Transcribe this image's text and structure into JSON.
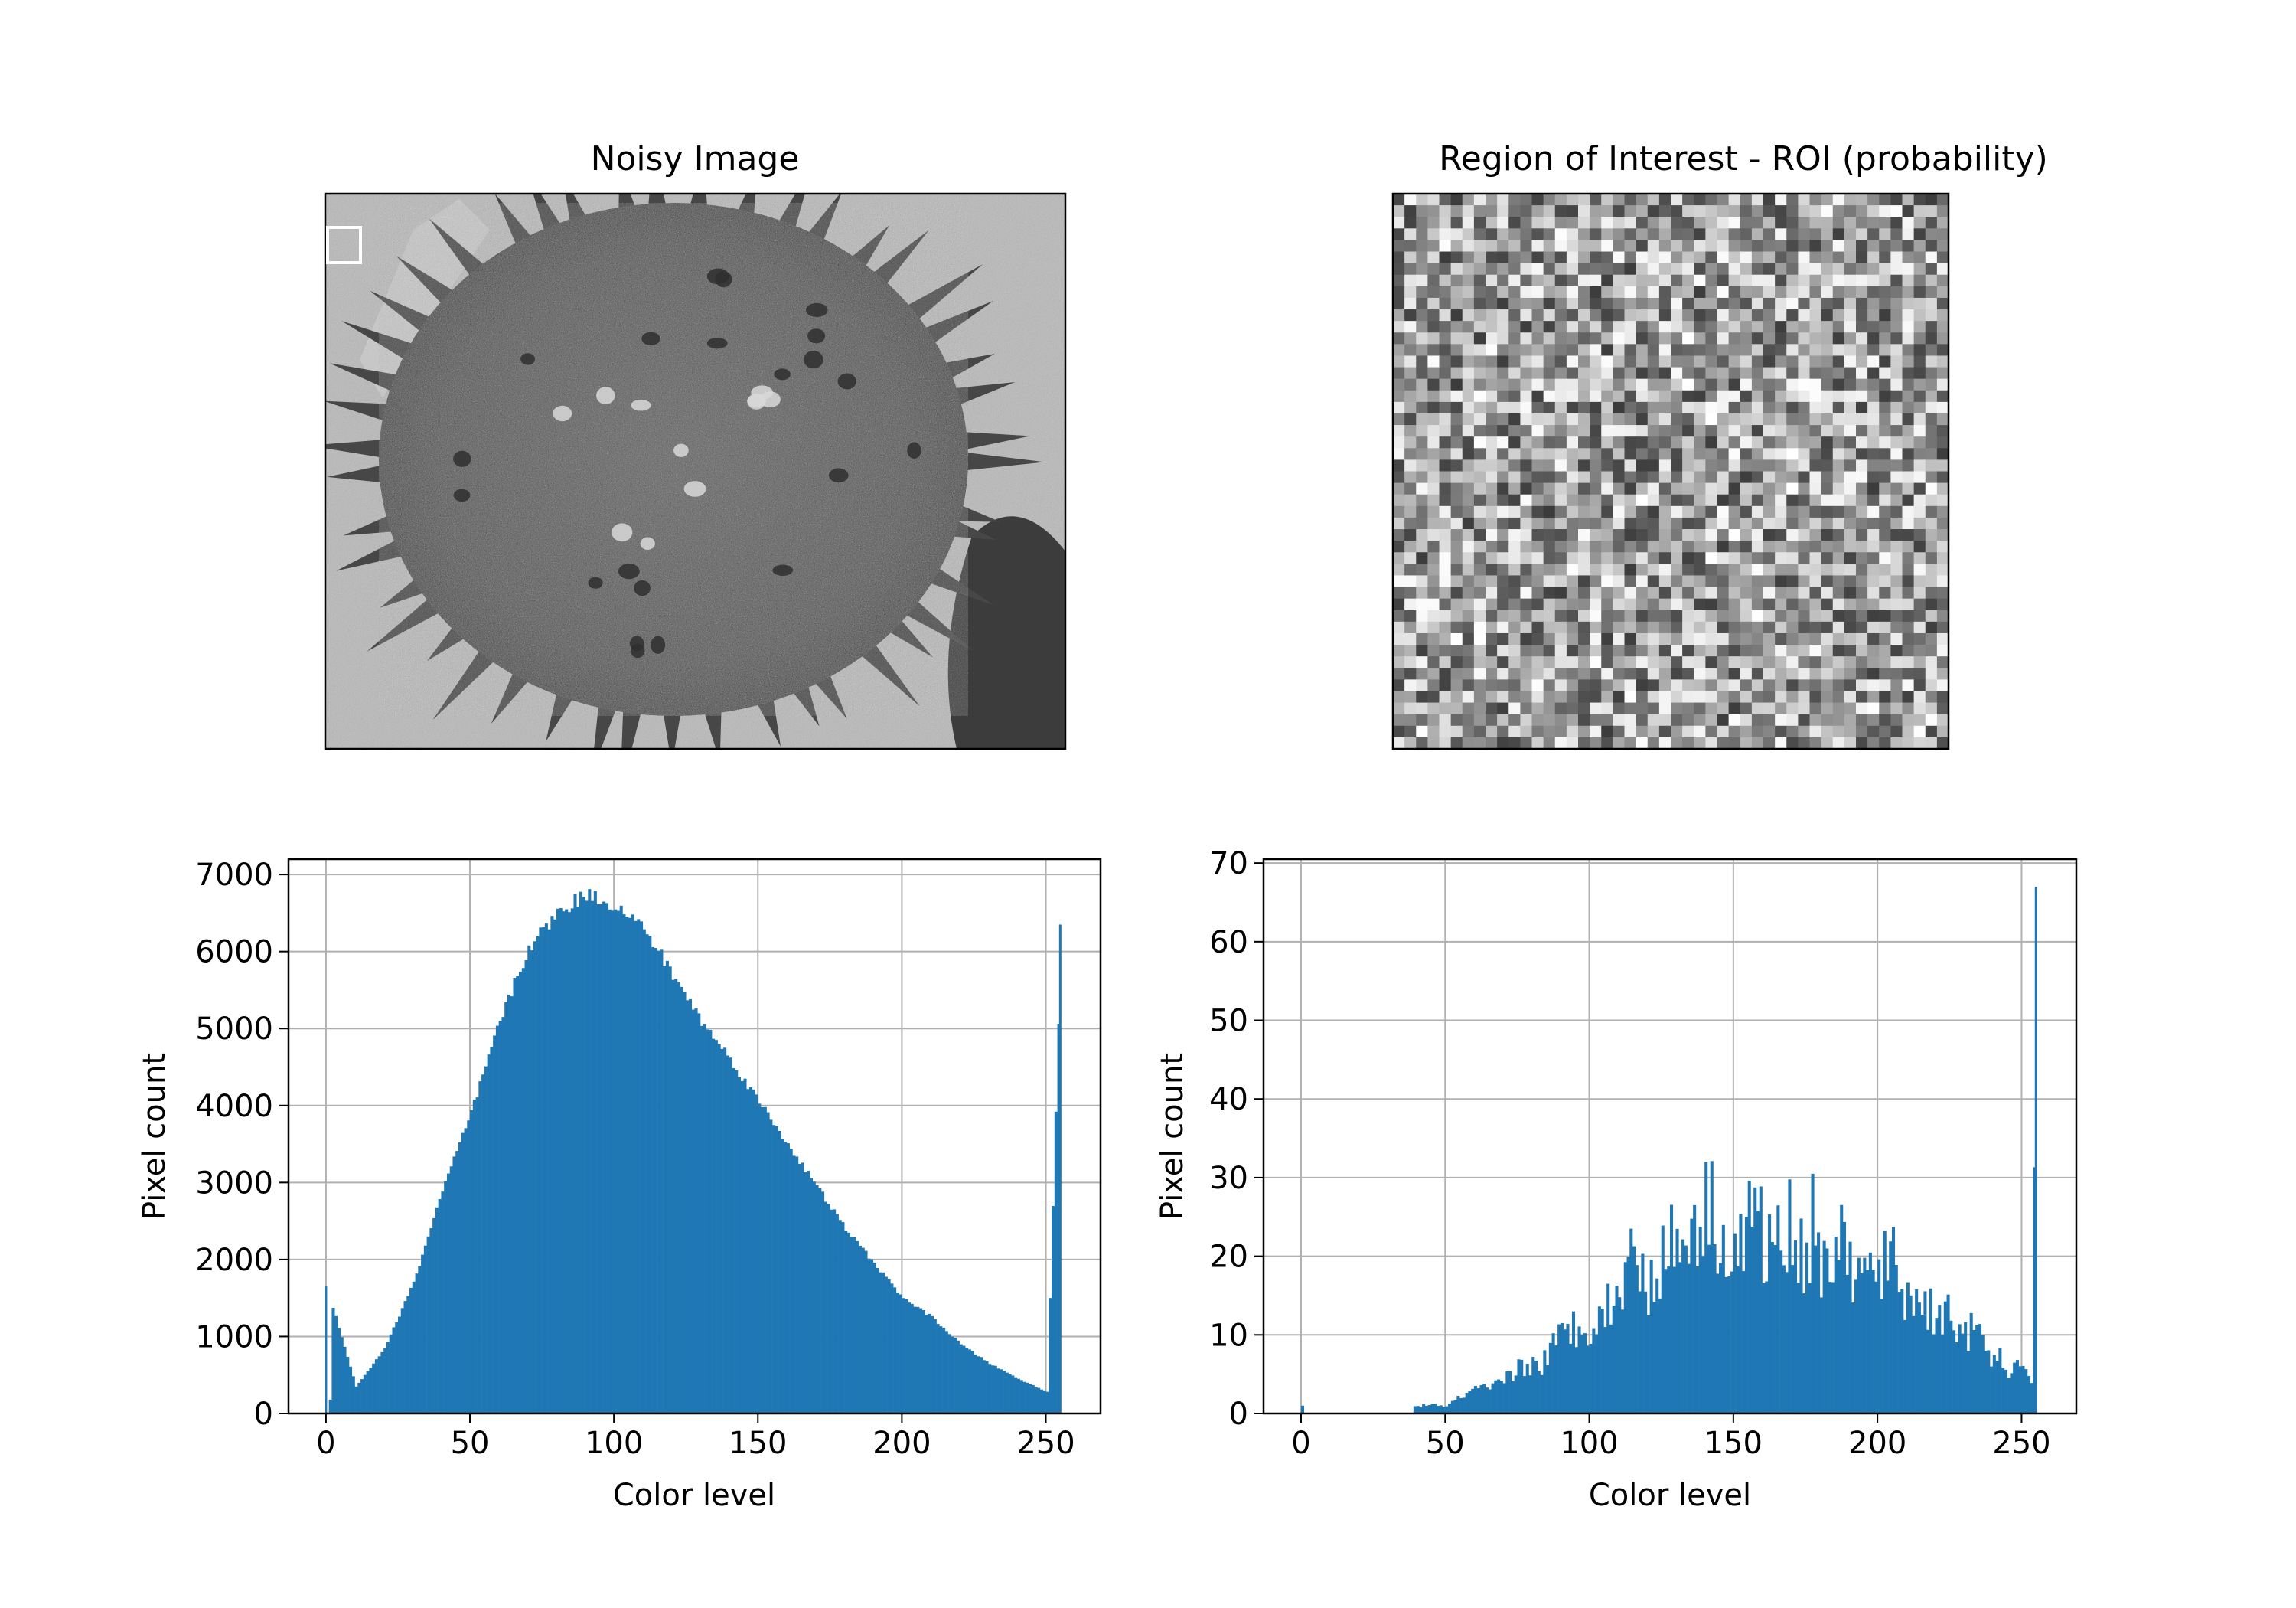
{
  "panels": {
    "noisy": {
      "title": "Noisy Image",
      "image": "noisy-pollen-grain-micrograph",
      "roi_marker": "white-square-roi-marker"
    },
    "roi": {
      "title": "Region of Interest - ROI (probability)",
      "image": "roi-noise-patch"
    }
  },
  "chart_data": [
    {
      "type": "bar",
      "subtype": "histogram",
      "xlabel": "Color level",
      "ylabel": "Pixel count",
      "xlim": [
        -13,
        269
      ],
      "ylim": [
        0,
        7200
      ],
      "xticks": [
        0,
        50,
        100,
        150,
        200,
        250
      ],
      "yticks": [
        0,
        1000,
        2000,
        3000,
        4000,
        5000,
        6000,
        7000
      ],
      "grid": true,
      "color": "#1f77b4",
      "bins": 256,
      "x": [
        0,
        10,
        20,
        30,
        40,
        50,
        60,
        70,
        80,
        90,
        100,
        110,
        120,
        130,
        140,
        150,
        160,
        170,
        180,
        190,
        200,
        210,
        220,
        230,
        240,
        250,
        255
      ],
      "values": [
        1650,
        350,
        850,
        1700,
        2900,
        3900,
        5100,
        6050,
        6500,
        6750,
        6600,
        6300,
        5700,
        5100,
        4600,
        4050,
        3500,
        2950,
        2400,
        1950,
        1500,
        1250,
        900,
        650,
        450,
        280,
        6350
      ]
    },
    {
      "type": "bar",
      "subtype": "histogram",
      "xlabel": "Color level",
      "ylabel": "Pixel count",
      "xlim": [
        -13,
        269
      ],
      "ylim": [
        0,
        70.5
      ],
      "xticks": [
        0,
        50,
        100,
        150,
        200,
        250
      ],
      "yticks": [
        0,
        10,
        20,
        30,
        40,
        50,
        60,
        70
      ],
      "grid": true,
      "color": "#1f77b4",
      "bins": 256,
      "x": [
        39,
        45,
        50,
        55,
        60,
        65,
        70,
        75,
        80,
        85,
        90,
        95,
        100,
        105,
        110,
        113,
        115,
        120,
        125,
        130,
        135,
        140,
        143,
        145,
        150,
        155,
        157,
        160,
        165,
        170,
        175,
        178,
        180,
        185,
        190,
        195,
        200,
        205,
        210,
        215,
        220,
        225,
        230,
        235,
        240,
        245,
        250,
        253,
        255
      ],
      "values": [
        1,
        1,
        1,
        2,
        3,
        3,
        4,
        6,
        6,
        7,
        10,
        11,
        12,
        13,
        15,
        23,
        18,
        17,
        20,
        22,
        24,
        26,
        27,
        22,
        20,
        24,
        28,
        21,
        22,
        24,
        20,
        26,
        18,
        22,
        19,
        17,
        18,
        19,
        15,
        14,
        13,
        12,
        11,
        9,
        7,
        6,
        5,
        4,
        67
      ]
    }
  ]
}
